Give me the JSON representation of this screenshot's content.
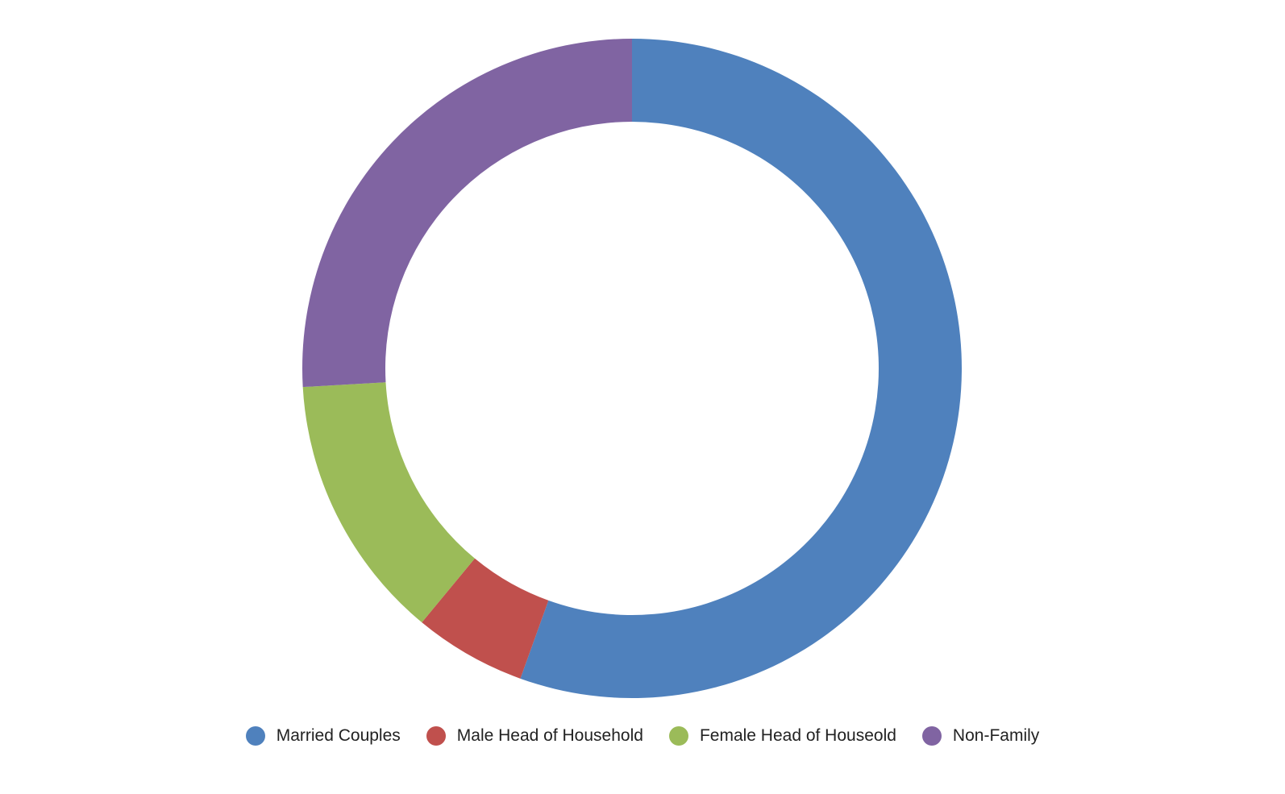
{
  "chart_data": {
    "type": "pie",
    "variant": "donut",
    "categories": [
      "Married Couples",
      "Male Head of Household",
      "Female Head of Houseold",
      "Non-Family"
    ],
    "values": [
      55.5,
      5.5,
      13.1,
      25.9
    ],
    "unit": "percent",
    "colors": [
      "#4F81BD",
      "#C0504D",
      "#9BBB59",
      "#8064A2"
    ],
    "title": "",
    "legend_position": "bottom"
  }
}
